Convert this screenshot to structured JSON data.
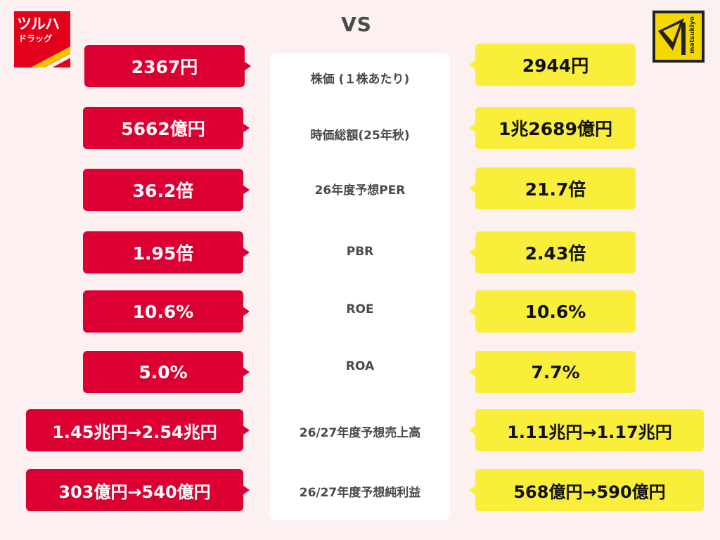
{
  "header": {
    "vs": "VS"
  },
  "logos": {
    "left": {
      "text_top": "ツルハ",
      "text_bottom": "ドラッグ",
      "color": "#e3001b"
    },
    "right": {
      "text": "matsukiyo",
      "color": "#f9ee3a"
    }
  },
  "rows": [
    {
      "label": "株価 (１株あたり)",
      "left": "2367円",
      "right": "2944円"
    },
    {
      "label": "時価総額(25年秋)",
      "left": "5662億円",
      "right": "1兆2689億円"
    },
    {
      "label": "26年度予想PER",
      "left": "36.2倍",
      "right": "21.7倍"
    },
    {
      "label": "PBR",
      "left": "1.95倍",
      "right": "2.43倍"
    },
    {
      "label": "ROE",
      "left": "10.6%",
      "right": "10.6%"
    },
    {
      "label": "ROA",
      "left": "5.0%",
      "right": "7.7%"
    },
    {
      "label": "26/27年度予想売上高",
      "left": "1.45兆円→2.54兆円",
      "right": "1.11兆円→1.17兆円"
    },
    {
      "label": "26/27年度予想純利益",
      "left": "303億円→540億円",
      "right": "568億円→590億円"
    }
  ],
  "colors": {
    "red": "#dc0032",
    "yellow": "#f9ee3a",
    "background": "#fdf0f0"
  }
}
